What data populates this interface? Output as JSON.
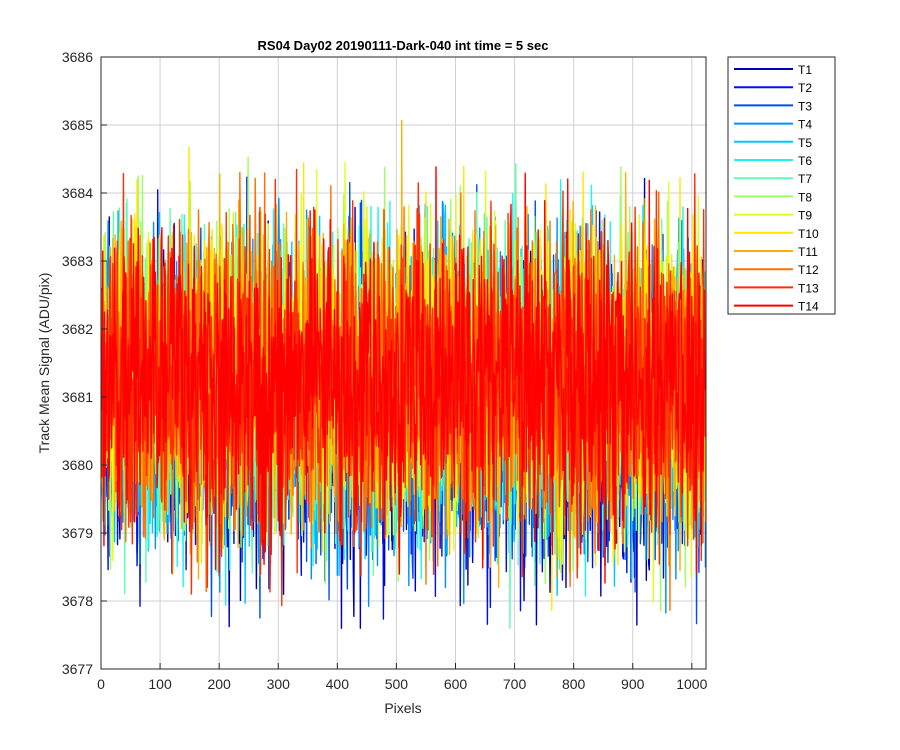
{
  "chart_data": {
    "type": "line",
    "title": "RS04 Day02 20190111-Dark-040 int time = 5 sec",
    "xlabel": "Pixels",
    "ylabel": "Track Mean Signal (ADU/pix)",
    "xlim": [
      0,
      1024
    ],
    "ylim": [
      3677,
      3686
    ],
    "grid": true,
    "legend_position": "outside-right",
    "x_ticks": [
      0,
      100,
      200,
      300,
      400,
      500,
      600,
      700,
      800,
      900,
      1000
    ],
    "y_ticks": [
      3677,
      3678,
      3679,
      3680,
      3681,
      3682,
      3683,
      3684,
      3685,
      3686
    ],
    "x": {
      "start": 1,
      "end": 1024,
      "step": 1
    },
    "noise_model": {
      "mean": 3681.2,
      "std": 1.1,
      "seed": 20190111
    },
    "series": [
      {
        "name": "T1",
        "color": "#0000b3",
        "offset": -0.55
      },
      {
        "name": "T2",
        "color": "#0010e6",
        "offset": -0.45
      },
      {
        "name": "T3",
        "color": "#0050f0",
        "offset": -0.35
      },
      {
        "name": "T4",
        "color": "#0090ff",
        "offset": -0.25
      },
      {
        "name": "T5",
        "color": "#00c8ff",
        "offset": -0.15
      },
      {
        "name": "T6",
        "color": "#20f4f0",
        "offset": -0.05
      },
      {
        "name": "T7",
        "color": "#60ffb0",
        "offset": 0.0
      },
      {
        "name": "T8",
        "color": "#a0ff60",
        "offset": 0.05
      },
      {
        "name": "T9",
        "color": "#e0ff20",
        "offset": 0.1
      },
      {
        "name": "T10",
        "color": "#ffe800",
        "offset": 0.15
      },
      {
        "name": "T11",
        "color": "#ffb000",
        "offset": 0.1
      },
      {
        "name": "T12",
        "color": "#ff7000",
        "offset": 0.05
      },
      {
        "name": "T13",
        "color": "#ff3000",
        "offset": 0.0
      },
      {
        "name": "T14",
        "color": "#ff0000",
        "offset": 0.0
      }
    ]
  }
}
